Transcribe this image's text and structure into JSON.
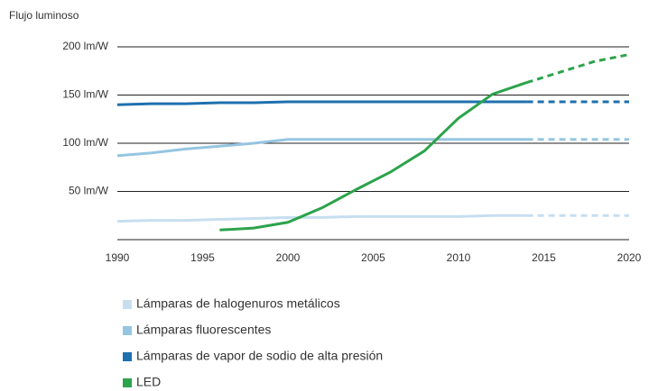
{
  "chart_data": {
    "type": "line",
    "y_axis_label": "Flujo luminoso",
    "x": [
      1990,
      1992,
      1994,
      1996,
      1998,
      2000,
      2002,
      2004,
      2006,
      2008,
      2010,
      2012,
      2014,
      2016,
      2018,
      2020
    ],
    "series": [
      {
        "name": "Lámparas de halogenuros metálicos",
        "color": "#c6dff0",
        "values": [
          19,
          20,
          20,
          21,
          22,
          23,
          23,
          24,
          24,
          24,
          24,
          25,
          25,
          25,
          25,
          25
        ]
      },
      {
        "name": "Lámparas fluorescentes",
        "color": "#95c5e1",
        "values": [
          87,
          90,
          94,
          97,
          100,
          104,
          104,
          104,
          104,
          104,
          104,
          104,
          104,
          104,
          104,
          104
        ]
      },
      {
        "name": "Lámparas de vapor de sodio de alta presión",
        "color": "#1f70ae",
        "values": [
          140,
          141,
          141,
          142,
          142,
          143,
          143,
          143,
          143,
          143,
          143,
          143,
          143,
          143,
          143,
          143
        ]
      },
      {
        "name": "LED",
        "color": "#2ca34b",
        "values": [
          null,
          null,
          null,
          10,
          12,
          18,
          33,
          52,
          70,
          92,
          126,
          151,
          163,
          174,
          185,
          192
        ]
      }
    ],
    "projection_from": 2014,
    "xlim": [
      1990,
      2020
    ],
    "xticks": [
      1990,
      1995,
      2000,
      2005,
      2010,
      2015,
      2020
    ],
    "ylim": [
      0,
      200
    ],
    "yticks": [
      {
        "value": 50,
        "label": "50 lm/W"
      },
      {
        "value": 100,
        "label": "100 lm/W"
      },
      {
        "value": 150,
        "label": "150 lm/W"
      },
      {
        "value": 200,
        "label": "200 lm/W"
      }
    ],
    "grid": true
  }
}
